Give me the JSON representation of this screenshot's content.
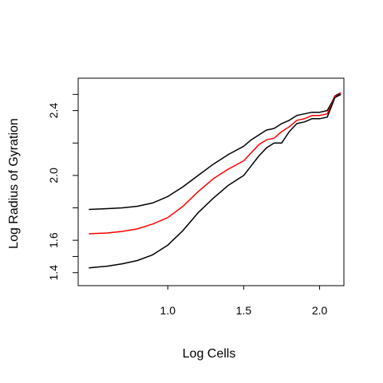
{
  "chart_data": {
    "type": "line",
    "title": "",
    "xlabel": "Log Cells",
    "ylabel": "Log Radius of Gyration",
    "x_tick_labels": [
      "1.0",
      "1.5",
      "2.0"
    ],
    "y_tick_labels": [
      "1.4",
      "1.6",
      "2.0",
      "2.4"
    ],
    "xlim": [
      0.41,
      2.16
    ],
    "ylim": [
      1.32,
      2.6
    ],
    "grid": false,
    "legend": "none",
    "series": [
      {
        "color": "#000000",
        "x": [
          0.48,
          0.6,
          0.7,
          0.8,
          0.9,
          1.0,
          1.1,
          1.2,
          1.3,
          1.4,
          1.5,
          1.55,
          1.6,
          1.65,
          1.7,
          1.75,
          1.8,
          1.85,
          1.9,
          1.95,
          2.0,
          2.05,
          2.08,
          2.1,
          2.12,
          2.14
        ],
        "y": [
          1.79,
          1.795,
          1.8,
          1.81,
          1.83,
          1.87,
          1.93,
          2.0,
          2.07,
          2.13,
          2.18,
          2.22,
          2.25,
          2.28,
          2.29,
          2.32,
          2.34,
          2.37,
          2.38,
          2.39,
          2.39,
          2.4,
          2.45,
          2.49,
          2.5,
          2.51
        ]
      },
      {
        "color": "#ff0000",
        "x": [
          0.48,
          0.6,
          0.7,
          0.8,
          0.9,
          1.0,
          1.1,
          1.2,
          1.3,
          1.4,
          1.5,
          1.55,
          1.6,
          1.65,
          1.7,
          1.75,
          1.8,
          1.85,
          1.9,
          1.95,
          2.0,
          2.05,
          2.08,
          2.1,
          2.12,
          2.14
        ],
        "y": [
          1.64,
          1.645,
          1.655,
          1.67,
          1.7,
          1.74,
          1.81,
          1.9,
          1.98,
          2.04,
          2.09,
          2.14,
          2.19,
          2.22,
          2.23,
          2.27,
          2.3,
          2.34,
          2.35,
          2.37,
          2.37,
          2.38,
          2.44,
          2.49,
          2.49,
          2.51
        ]
      },
      {
        "color": "#000000",
        "x": [
          0.48,
          0.6,
          0.7,
          0.8,
          0.9,
          1.0,
          1.1,
          1.2,
          1.3,
          1.4,
          1.5,
          1.55,
          1.6,
          1.65,
          1.7,
          1.75,
          1.8,
          1.85,
          1.9,
          1.95,
          2.0,
          2.05,
          2.08,
          2.1,
          2.12,
          2.14
        ],
        "y": [
          1.43,
          1.44,
          1.455,
          1.475,
          1.51,
          1.57,
          1.66,
          1.77,
          1.86,
          1.94,
          2.0,
          2.06,
          2.12,
          2.17,
          2.2,
          2.2,
          2.27,
          2.32,
          2.33,
          2.35,
          2.35,
          2.36,
          2.43,
          2.48,
          2.49,
          2.5
        ]
      }
    ]
  }
}
